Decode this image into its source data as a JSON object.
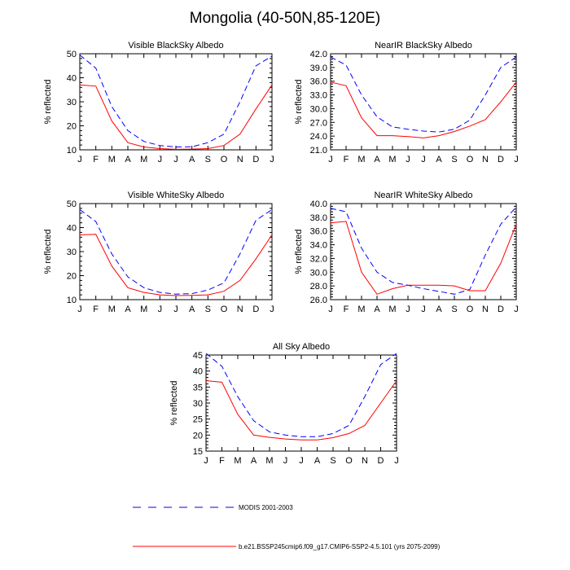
{
  "title": "Mongolia (40-50N,85-120E)",
  "colors": {
    "modis": "#0000ff",
    "model": "#ff0000",
    "axis": "#000000"
  },
  "legend": {
    "modis_label": "MODIS 2001-2003",
    "model_label": "b.e21.BSSP245cmip6.f09_g17.CMIP6-SSP2-4.5.101 (yrs 2075-2099)"
  },
  "chart_data": [
    {
      "type": "line",
      "title": "Visible BlackSky Albedo",
      "ylabel": "% reflected",
      "xlabel": "",
      "categories": [
        "J",
        "F",
        "M",
        "A",
        "M",
        "J",
        "J",
        "A",
        "S",
        "O",
        "N",
        "D",
        "J"
      ],
      "ylim": [
        10,
        50
      ],
      "yticks": [
        "10",
        "20",
        "30",
        "40",
        "50"
      ],
      "series": [
        {
          "name": "MODIS 2001-2003",
          "style": "dashed",
          "values": [
            49.5,
            44,
            28,
            18,
            13.5,
            11.8,
            11.2,
            11.3,
            13,
            16.5,
            30,
            45,
            49
          ]
        },
        {
          "name": "b.e21.BSSP245cmip6.f09_g17.CMIP6-SSP2-4.5.101 (yrs 2075-2099)",
          "style": "solid",
          "values": [
            37,
            36.5,
            22,
            13,
            11.2,
            10.5,
            10.2,
            10.3,
            10.5,
            11.8,
            16.5,
            27,
            37
          ]
        }
      ]
    },
    {
      "type": "line",
      "title": "NearIR BlackSky Albedo",
      "ylabel": "% reflected",
      "xlabel": "",
      "categories": [
        "J",
        "F",
        "M",
        "A",
        "M",
        "J",
        "J",
        "A",
        "S",
        "O",
        "N",
        "D",
        "J"
      ],
      "ylim": [
        21.0,
        42.0
      ],
      "yticks": [
        "21.0",
        "24.0",
        "27.0",
        "30.0",
        "33.0",
        "36.0",
        "39.0",
        "42.0"
      ],
      "series": [
        {
          "name": "MODIS 2001-2003",
          "style": "dashed",
          "values": [
            41.3,
            39.5,
            33,
            28.2,
            26,
            25.5,
            25.1,
            24.9,
            25.5,
            27.5,
            33,
            39,
            41.3
          ]
        },
        {
          "name": "b.e21.BSSP245cmip6.f09_g17.CMIP6-SSP2-4.5.101 (yrs 2075-2099)",
          "style": "solid",
          "values": [
            35.8,
            35,
            28,
            24.1,
            24.1,
            23.9,
            23.6,
            24.1,
            25,
            26.2,
            27.6,
            31.5,
            35.8
          ]
        }
      ]
    },
    {
      "type": "line",
      "title": "Visible WhiteSky Albedo",
      "ylabel": "% reflected",
      "xlabel": "",
      "categories": [
        "J",
        "F",
        "M",
        "A",
        "M",
        "J",
        "J",
        "A",
        "S",
        "O",
        "N",
        "D",
        "J"
      ],
      "ylim": [
        10,
        50
      ],
      "yticks": [
        "10",
        "20",
        "30",
        "40",
        "50"
      ],
      "series": [
        {
          "name": "MODIS 2001-2003",
          "style": "dashed",
          "values": [
            47.5,
            42.5,
            29,
            19.5,
            15,
            13,
            12.3,
            12.5,
            14,
            17,
            29,
            43,
            47.5
          ]
        },
        {
          "name": "b.e21.BSSP245cmip6.f09_g17.CMIP6-SSP2-4.5.101 (yrs 2075-2099)",
          "style": "solid",
          "values": [
            37,
            37.2,
            24,
            15,
            13,
            12,
            11.7,
            11.8,
            12,
            13.5,
            18,
            27,
            37
          ]
        }
      ]
    },
    {
      "type": "line",
      "title": "NearIR WhiteSky Albedo",
      "ylabel": "% reflected",
      "xlabel": "",
      "categories": [
        "J",
        "F",
        "M",
        "A",
        "M",
        "J",
        "J",
        "A",
        "S",
        "O",
        "N",
        "D",
        "J"
      ],
      "ylim": [
        26.0,
        40.0
      ],
      "yticks": [
        "26.0",
        "28.0",
        "30.0",
        "32.0",
        "34.0",
        "36.0",
        "38.0",
        "40.0"
      ],
      "series": [
        {
          "name": "MODIS 2001-2003",
          "style": "dashed",
          "values": [
            39.3,
            38.8,
            33.5,
            30,
            28.5,
            28.1,
            27.6,
            27.2,
            26.8,
            27.5,
            32.5,
            37,
            39.5
          ]
        },
        {
          "name": "b.e21.BSSP245cmip6.f09_g17.CMIP6-SSP2-4.5.101 (yrs 2075-2099)",
          "style": "solid",
          "values": [
            37.2,
            37.4,
            30,
            26.8,
            27.6,
            28.1,
            28.1,
            28.1,
            28,
            27.3,
            27.3,
            31.3,
            37
          ]
        }
      ]
    },
    {
      "type": "line",
      "title": "All Sky Albedo",
      "ylabel": "% reflected",
      "xlabel": "",
      "categories": [
        "J",
        "F",
        "M",
        "A",
        "M",
        "J",
        "J",
        "A",
        "S",
        "O",
        "N",
        "D",
        "J"
      ],
      "ylim": [
        15,
        45
      ],
      "yticks": [
        "15",
        "20",
        "25",
        "30",
        "35",
        "40",
        "45"
      ],
      "series": [
        {
          "name": "MODIS 2001-2003",
          "style": "dashed",
          "values": [
            45.5,
            41.5,
            32,
            24.5,
            21,
            20,
            19.5,
            19.5,
            20.5,
            23,
            32,
            42,
            45.5
          ]
        },
        {
          "name": "b.e21.BSSP245cmip6.f09_g17.CMIP6-SSP2-4.5.101 (yrs 2075-2099)",
          "style": "solid",
          "values": [
            37,
            36.5,
            26.5,
            20,
            19.3,
            18.8,
            18.5,
            18.5,
            19.2,
            20.5,
            23,
            30,
            37
          ]
        }
      ]
    }
  ]
}
